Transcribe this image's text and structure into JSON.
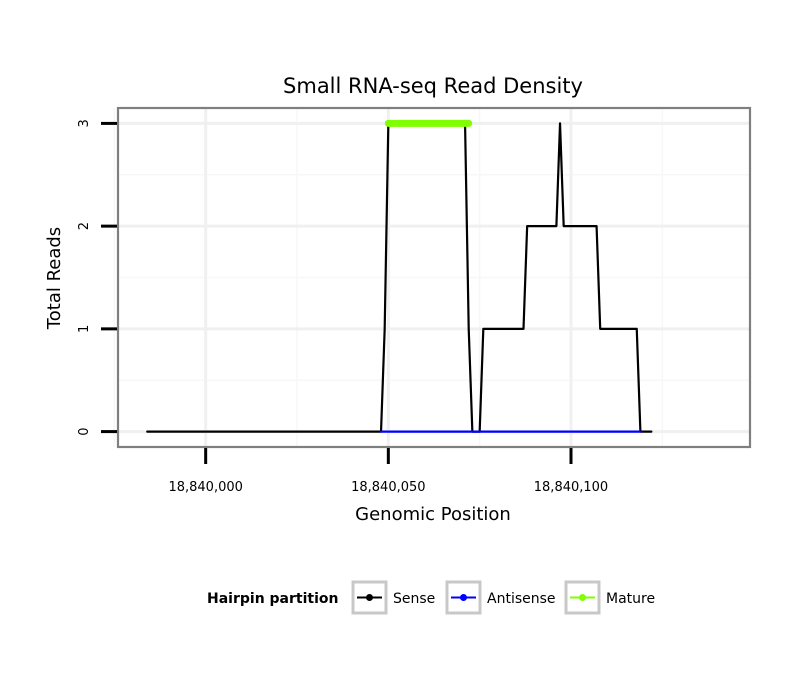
{
  "chart_data": {
    "type": "line",
    "title": "Small RNA-seq Read Density",
    "xlabel": "Genomic Position",
    "ylabel": "Total Reads",
    "xlim": [
      18839976,
      18840149
    ],
    "ylim": [
      -0.15,
      3.15
    ],
    "x_ticks": [
      18840000,
      18840050,
      18840100
    ],
    "x_tick_labels": [
      "18,840,000",
      "18,840,050",
      "18,840,100"
    ],
    "y_ticks": [
      0,
      1,
      2,
      3
    ],
    "y_tick_labels": [
      "0",
      "1",
      "2",
      "3"
    ],
    "grid": true,
    "legend": {
      "position": "bottom",
      "title": "Hairpin partition",
      "entries": [
        {
          "name": "Sense",
          "color": "#000000"
        },
        {
          "name": "Antisense",
          "color": "#0000ff"
        },
        {
          "name": "Mature",
          "color": "#7fff00"
        }
      ]
    },
    "series": [
      {
        "name": "Sense",
        "color": "#000000",
        "x": [
          18839984,
          18840048,
          18840049,
          18840050,
          18840071,
          18840072,
          18840073,
          18840074,
          18840075,
          18840076,
          18840087,
          18840088,
          18840096,
          18840097,
          18840098,
          18840099,
          18840107,
          18840108,
          18840118,
          18840119,
          18840122
        ],
        "y": [
          0,
          0,
          1,
          3,
          3,
          1,
          0,
          0,
          0,
          1,
          1,
          2,
          2,
          3,
          2,
          2,
          2,
          1,
          1,
          0,
          0
        ]
      },
      {
        "name": "Antisense",
        "color": "#0000ff",
        "x": [
          18840048,
          18840119
        ],
        "y": [
          0,
          0
        ]
      },
      {
        "name": "Mature",
        "color": "#7fff00",
        "x": [
          18840050,
          18840072
        ],
        "y": [
          3,
          3
        ]
      }
    ]
  }
}
